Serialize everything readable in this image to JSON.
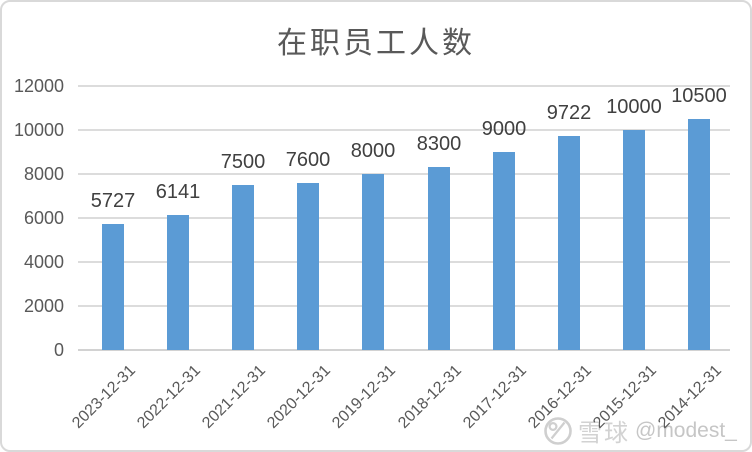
{
  "chart_data": {
    "type": "bar",
    "title": "在职员工人数",
    "categories": [
      "2023-12-31",
      "2022-12-31",
      "2021-12-31",
      "2020-12-31",
      "2019-12-31",
      "2018-12-31",
      "2017-12-31",
      "2016-12-31",
      "2015-12-31",
      "2014-12-31"
    ],
    "values": [
      5727,
      6141,
      7500,
      7600,
      8000,
      8300,
      9000,
      9722,
      10000,
      10500
    ],
    "data_labels": [
      "5727",
      "6141",
      "7500",
      "7600",
      "8000",
      "8300",
      "9000",
      "9722",
      "10000",
      "10500"
    ],
    "xlabel": "",
    "ylabel": "",
    "ylim": [
      0,
      12000
    ],
    "yticks": [
      0,
      2000,
      4000,
      6000,
      8000,
      10000,
      12000
    ],
    "ytick_labels": [
      "0",
      "2000",
      "4000",
      "6000",
      "8000",
      "10000",
      "12000"
    ],
    "grid": "horizontal",
    "legend": "none",
    "x_label_rotation_deg": 45,
    "colors": {
      "bar": "#5B9BD5",
      "gridline": "#DCDCDC",
      "axis_line": "#D2D2D2",
      "tick_label": "#595959",
      "data_label": "#404040",
      "title": "#595959"
    }
  },
  "watermark": {
    "logo": "xueqiu-snowball-logo",
    "brand": "雪球",
    "username": "@modest_",
    "color": "#CCCCCC"
  }
}
